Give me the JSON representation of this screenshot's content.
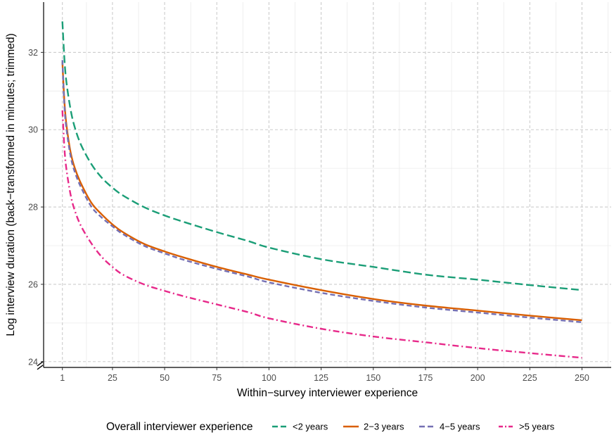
{
  "chart_data": {
    "type": "line",
    "xlabel": "Within−survey interviewer experience",
    "ylabel": "Log interview duration (back−transformed in minutes; trimmed)",
    "xlim": [
      -8,
      264
    ],
    "ylim": [
      23.85,
      33.3
    ],
    "x_ticks": [
      1,
      25,
      50,
      75,
      100,
      125,
      150,
      175,
      200,
      225,
      250
    ],
    "x_tick_labels": [
      "1",
      "25",
      "50",
      "75",
      "100",
      "125",
      "150",
      "175",
      "200",
      "225",
      "250"
    ],
    "y_ticks": [
      24,
      26,
      28,
      30,
      32
    ],
    "y_tick_labels": [
      "24",
      "26",
      "28",
      "30",
      "32"
    ],
    "y_axis_break": true,
    "grid": true,
    "legend_position": "bottom",
    "legend_title": "Overall interviewer experience",
    "x": [
      1,
      2,
      3,
      5,
      7,
      10,
      15,
      20,
      25,
      30,
      40,
      50,
      60,
      75,
      90,
      100,
      125,
      150,
      175,
      200,
      225,
      250
    ],
    "series": [
      {
        "name": "<2 years",
        "color": "#1b9e77",
        "dash": "long-dash",
        "values": [
          32.8,
          31.8,
          31.2,
          30.5,
          30.05,
          29.6,
          29.1,
          28.75,
          28.5,
          28.3,
          28.0,
          27.78,
          27.6,
          27.35,
          27.12,
          26.95,
          26.65,
          26.45,
          26.25,
          26.12,
          25.98,
          25.85
        ]
      },
      {
        "name": "2−3 years",
        "color": "#d95f02",
        "dash": "solid",
        "values": [
          31.75,
          30.7,
          30.1,
          29.4,
          29.0,
          28.6,
          28.1,
          27.8,
          27.55,
          27.35,
          27.05,
          26.85,
          26.68,
          26.45,
          26.25,
          26.12,
          25.85,
          25.62,
          25.45,
          25.32,
          25.19,
          25.07
        ]
      },
      {
        "name": "4−5 years",
        "color": "#7570b3",
        "dash": "dash",
        "values": [
          31.8,
          30.6,
          30.0,
          29.3,
          28.9,
          28.5,
          28.0,
          27.72,
          27.5,
          27.3,
          27.0,
          26.8,
          26.62,
          26.4,
          26.2,
          26.05,
          25.78,
          25.57,
          25.4,
          25.27,
          25.14,
          25.02
        ]
      },
      {
        "name": ">5 years",
        "color": "#e7298a",
        "dash": "dash-dot",
        "values": [
          30.5,
          29.5,
          28.95,
          28.3,
          27.9,
          27.5,
          27.05,
          26.7,
          26.45,
          26.25,
          26.0,
          25.83,
          25.68,
          25.48,
          25.28,
          25.12,
          24.85,
          24.65,
          24.5,
          24.35,
          24.22,
          24.1
        ]
      }
    ]
  }
}
